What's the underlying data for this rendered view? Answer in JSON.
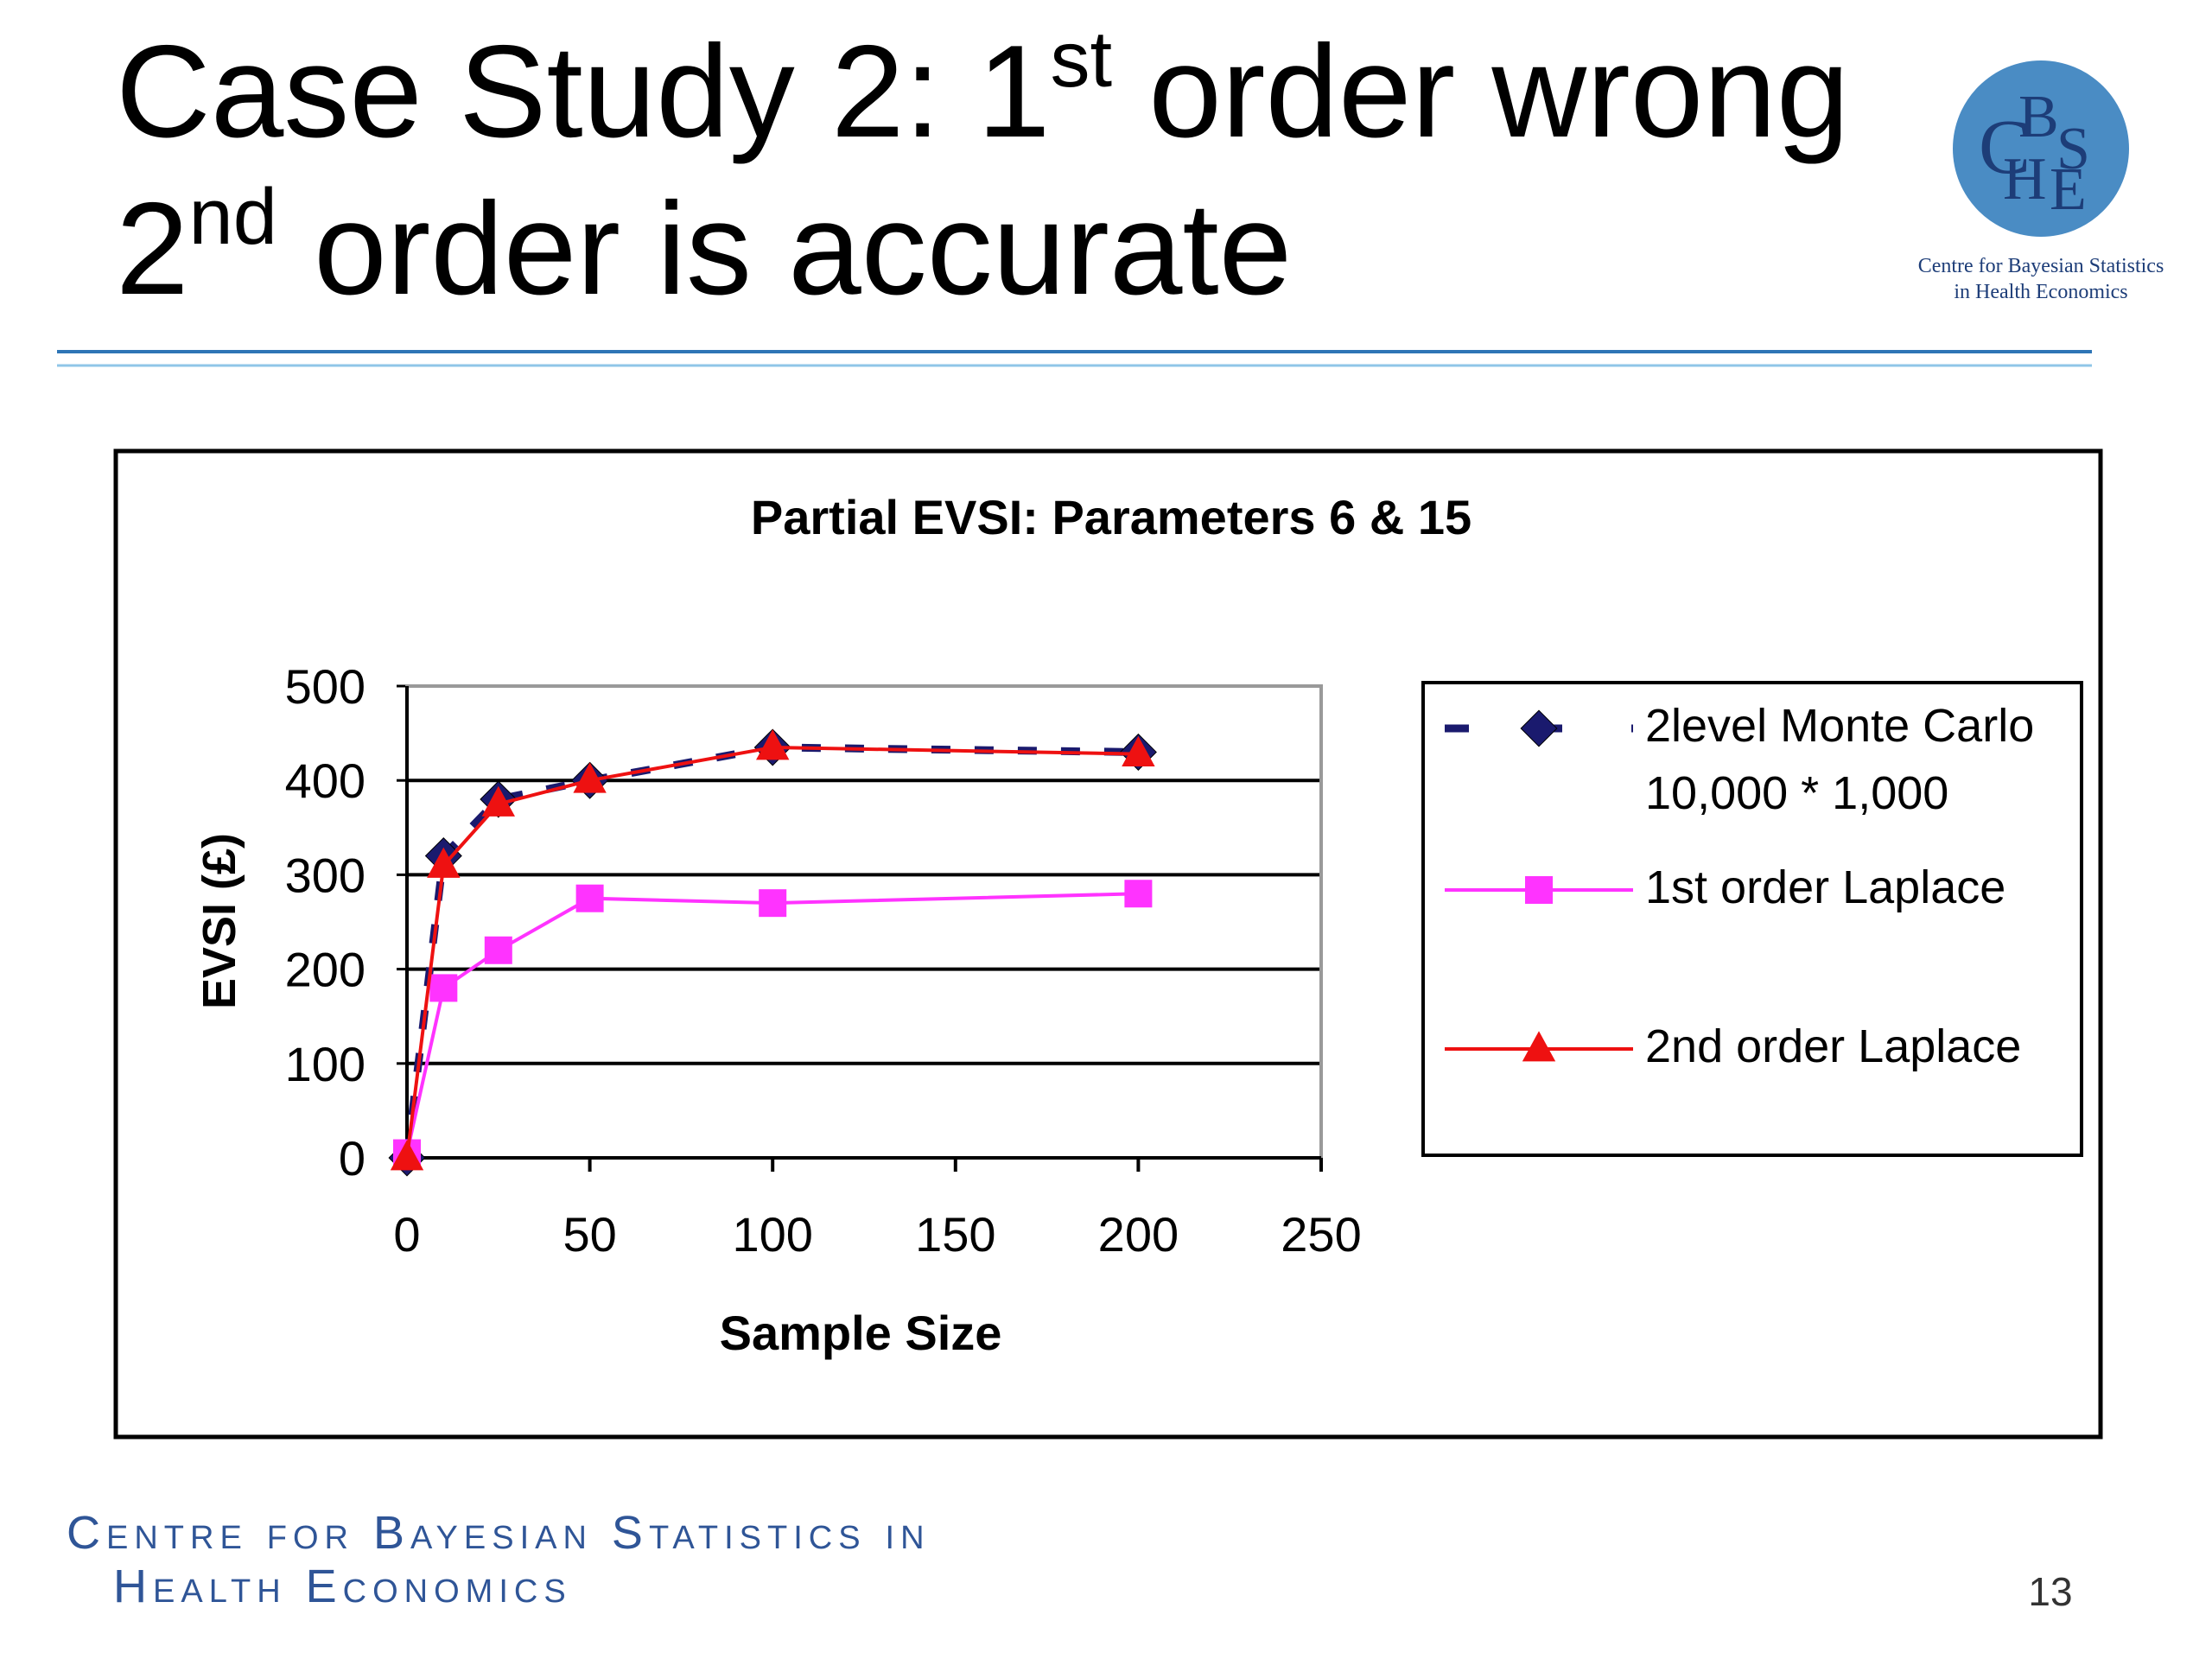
{
  "slide": {
    "title_line1": [
      "Case Study 2: 1",
      "st",
      " order wrong"
    ],
    "title_line2": [
      "2",
      "nd",
      " order is accurate"
    ],
    "logo_letters": [
      "C",
      "B",
      "S",
      "H",
      "E"
    ],
    "logo_caption": [
      "Centre for Bayesian Statistics",
      "in Health Economics"
    ],
    "footer": [
      "Centre for Bayesian Statistics in",
      "Health Economics"
    ],
    "page_number": "13"
  },
  "chart_data": {
    "type": "line",
    "title": "Partial EVSI: Parameters 6 & 15",
    "x_label": "Sample Size",
    "y_label": "EVSI (£)",
    "xlim": [
      0,
      250
    ],
    "xticks": [
      0,
      50,
      100,
      150,
      200,
      250
    ],
    "ylim": [
      0,
      500
    ],
    "yticks": [
      0,
      100,
      200,
      300,
      400,
      500
    ],
    "grid": true,
    "x": [
      0,
      10,
      25,
      50,
      100,
      200
    ],
    "series": [
      {
        "name": "2level Monte Carlo 10,000 * 1,000",
        "color": "#1a1a6e",
        "marker": "diamond",
        "dashed": true,
        "values": [
          0,
          320,
          380,
          400,
          435,
          430
        ]
      },
      {
        "name": "1st order Laplace",
        "color": "#ff33ff",
        "marker": "square",
        "dashed": false,
        "values": [
          5,
          180,
          220,
          275,
          270,
          280
        ]
      },
      {
        "name": "2nd order Laplace",
        "color": "#ee1111",
        "marker": "triangle",
        "dashed": false,
        "values": [
          0,
          310,
          375,
          400,
          435,
          428
        ]
      }
    ]
  }
}
